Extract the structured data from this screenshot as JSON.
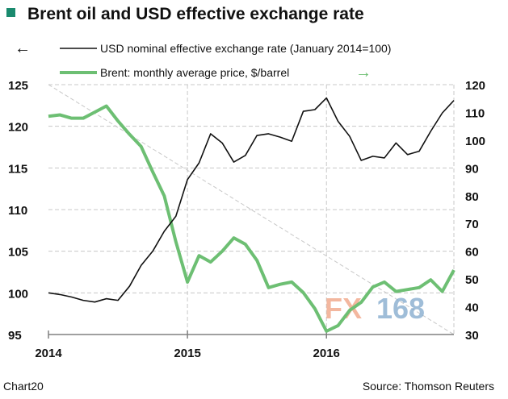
{
  "colors": {
    "usd": "#111111",
    "brent": "#6dbf73",
    "title_marker": "#1a8a6e",
    "grid": "#c8c8c8",
    "axis": "#808080",
    "wm_fx": "#f0a080",
    "wm_num": "#7fa8cc"
  },
  "chart_data": {
    "type": "line",
    "title": "Brent oil and USD effective exchange rate",
    "x_labels": [
      "2014",
      "2015",
      "2016"
    ],
    "x_start": "2014-01",
    "months": 36,
    "left_axis": {
      "ylim": [
        95,
        125
      ],
      "ticks": [
        "95",
        "100",
        "105",
        "110",
        "115",
        "120",
        "125"
      ]
    },
    "right_axis": {
      "ylim": [
        30,
        120
      ],
      "ticks": [
        "30",
        "40",
        "50",
        "60",
        "70",
        "80",
        "90",
        "100",
        "110",
        "120"
      ]
    },
    "grid": true,
    "series": [
      {
        "name": "USD nominal effective exchange rate (January 2014=100)",
        "axis": "left",
        "arrow": "←",
        "values": [
          100.0,
          99.8,
          99.5,
          99.1,
          98.9,
          99.3,
          99.1,
          100.8,
          103.3,
          105.0,
          107.4,
          109.2,
          113.6,
          115.6,
          119.1,
          118.0,
          115.7,
          116.5,
          118.9,
          119.1,
          118.7,
          118.2,
          121.8,
          122.0,
          123.4,
          120.6,
          118.8,
          115.9,
          116.4,
          116.2,
          118.0,
          116.6,
          117.0,
          119.4,
          121.6,
          123.1
        ]
      },
      {
        "name": "Brent: monthly average price, $/barrel",
        "axis": "right",
        "arrow": "→",
        "values": [
          108.6,
          109.1,
          107.9,
          107.9,
          110.1,
          112.3,
          106.9,
          102.1,
          97.7,
          88.6,
          79.9,
          63.4,
          48.9,
          58.4,
          56.1,
          60.0,
          64.8,
          62.5,
          56.7,
          46.9,
          48.1,
          48.9,
          45.1,
          39.3,
          31.2,
          33.2,
          38.7,
          41.6,
          47.1,
          48.9,
          45.5,
          46.2,
          46.9,
          49.7,
          45.5,
          53.2
        ]
      }
    ]
  },
  "footer": {
    "left": "Chart20",
    "right": "Source: Thomson Reuters"
  },
  "watermark": {
    "fx": "FX",
    "num": "168"
  }
}
